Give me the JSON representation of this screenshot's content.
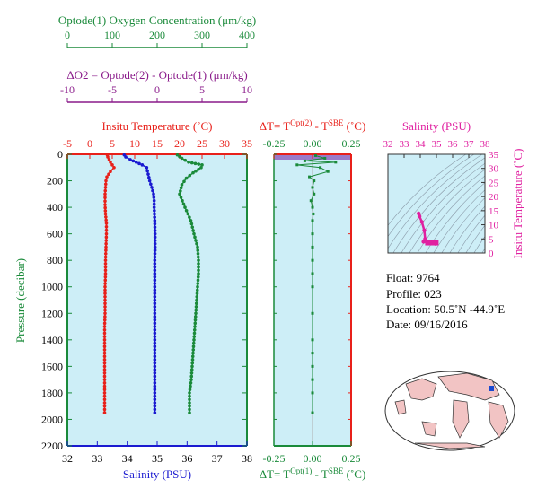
{
  "colors": {
    "oxygen": "#1a8a3a",
    "delta_o2": "#8a1a8a",
    "temperature": "#e8201a",
    "salinity": "#1a1ad0",
    "ts_pink": "#e020a0",
    "panel_bg": "#cdeef7",
    "land": "#f2c4c4"
  },
  "chart_data": [
    {
      "type": "line",
      "panel": "main-profile",
      "series": [
        {
          "name": "Insitu Temperature",
          "axis": "top",
          "x": [
            3.9,
            4.0,
            4.3,
            4.6,
            5.0,
            5.4,
            4.6,
            3.8,
            3.6,
            3.5,
            3.4,
            3.4,
            3.5,
            3.7,
            3.7,
            3.6,
            3.5,
            3.5,
            3.4,
            3.4,
            3.4,
            3.3,
            3.3,
            3.3,
            3.3,
            3.3,
            3.3,
            3.3
          ],
          "y": [
            5,
            20,
            40,
            60,
            80,
            100,
            130,
            170,
            200,
            250,
            300,
            380,
            450,
            520,
            600,
            700,
            800,
            900,
            1000,
            1100,
            1200,
            1300,
            1400,
            1500,
            1600,
            1700,
            1800,
            1950
          ]
        },
        {
          "name": "Salinity",
          "axis": "bottom",
          "x": [
            33.9,
            33.95,
            34.1,
            34.3,
            34.5,
            34.65,
            34.7,
            34.75,
            34.82,
            34.88,
            34.9,
            34.9,
            34.92,
            34.93,
            34.93,
            34.92,
            34.92,
            34.92,
            34.92,
            34.92,
            34.92,
            34.92,
            34.92,
            34.92,
            34.92,
            34.92,
            34.92
          ],
          "y": [
            5,
            20,
            40,
            60,
            80,
            100,
            150,
            200,
            250,
            300,
            350,
            400,
            500,
            600,
            700,
            800,
            900,
            1000,
            1100,
            1200,
            1300,
            1400,
            1500,
            1600,
            1700,
            1800,
            1950
          ]
        },
        {
          "name": "Optode(1) Oxygen Concentration",
          "axis": "top2",
          "x": [
            245,
            255,
            270,
            300,
            298,
            280,
            265,
            255,
            250,
            262,
            275,
            282,
            290,
            292,
            292,
            290,
            288,
            286,
            284,
            282,
            280,
            278,
            276,
            272,
            272,
            272
          ],
          "y": [
            5,
            30,
            60,
            80,
            100,
            140,
            180,
            230,
            300,
            400,
            500,
            600,
            700,
            800,
            900,
            1000,
            1100,
            1200,
            1300,
            1400,
            1500,
            1600,
            1700,
            1800,
            1900,
            1950
          ]
        }
      ],
      "axes": {
        "top": {
          "label": "Insitu Temperature (˚C)",
          "ticks": [
            "-5",
            "0",
            "5",
            "10",
            "15",
            "20",
            "25",
            "30",
            "35"
          ],
          "range": [
            -5,
            35
          ]
        },
        "top2": {
          "label": "Optode(1) Oxygen Concentration (μm/kg)",
          "ticks": [
            "0",
            "100",
            "200",
            "300",
            "400"
          ],
          "range": [
            0,
            400
          ]
        },
        "top3": {
          "label": "ΔO2 = Optode(2) - Optode(1)   (μm/kg)",
          "ticks": [
            "-10",
            "-5",
            "0",
            "5",
            "10"
          ],
          "range": [
            -10,
            10
          ]
        },
        "bottom": {
          "label": "Salinity (PSU)",
          "ticks": [
            "32",
            "33",
            "34",
            "35",
            "36",
            "37",
            "38"
          ],
          "range": [
            32,
            38
          ]
        },
        "left": {
          "label": "Pressure (decibar)",
          "ticks": [
            "0",
            "200",
            "400",
            "600",
            "800",
            "1000",
            "1200",
            "1400",
            "1600",
            "1800",
            "2000",
            "2200"
          ],
          "range": [
            0,
            2200
          ]
        }
      }
    },
    {
      "type": "scatter",
      "panel": "delta-t",
      "series": [
        {
          "name": "ΔT",
          "x": [
            0.02,
            0.08,
            -0.05,
            0.15,
            -0.1,
            0.05,
            0.1,
            -0.02,
            0.01,
            0.0,
            0.01,
            -0.01,
            0.0,
            0.005,
            0.0,
            0.0,
            0.0,
            0.0,
            0.0,
            0.0,
            0.0,
            0.0,
            0.0,
            0.0,
            0.0,
            0.0,
            0.0
          ],
          "y": [
            10,
            30,
            50,
            60,
            80,
            100,
            130,
            170,
            200,
            250,
            300,
            350,
            400,
            450,
            500,
            600,
            700,
            800,
            900,
            1000,
            1200,
            1400,
            1500,
            1600,
            1700,
            1800,
            1950
          ]
        }
      ],
      "axes": {
        "top": {
          "label_main": "ΔT= T",
          "label_sup1": "Opt(2)",
          "label_mid": " - T",
          "label_sup2": "SBE",
          "label_end": " (˚C)",
          "ticks": [
            "-0.25",
            "0.00",
            "0.25"
          ],
          "range": [
            -0.25,
            0.25
          ]
        },
        "bottom": {
          "label_main": "ΔT= T",
          "label_sup1": "Opt(1)",
          "label_mid": " - T",
          "label_sup2": "SBE",
          "label_end": " (˚C)",
          "ticks": [
            "-0.25",
            "0.00",
            "0.25"
          ],
          "range": [
            -0.25,
            0.25
          ]
        }
      }
    },
    {
      "type": "scatter",
      "panel": "ts-diagram",
      "series": [
        {
          "name": "T-S",
          "x": [
            33.9,
            33.95,
            34.1,
            34.25,
            34.3,
            34.2,
            34.5,
            34.7,
            34.9,
            34.95,
            34.93
          ],
          "y": [
            14.0,
            13.0,
            11.0,
            8.0,
            5.0,
            4.0,
            3.8,
            3.6,
            3.5,
            3.4,
            3.3
          ]
        }
      ],
      "axes": {
        "top": {
          "label": "Salinity (PSU)",
          "ticks": [
            "32",
            "33",
            "34",
            "35",
            "36",
            "37",
            "38"
          ],
          "range": [
            32,
            38
          ]
        },
        "right": {
          "label": "Insitu Temperature (˚C)",
          "ticks": [
            "0",
            "5",
            "10",
            "15",
            "20",
            "25",
            "30",
            "35"
          ],
          "range": [
            0,
            35
          ]
        }
      }
    }
  ],
  "info": {
    "float": "Float:  9764",
    "profile": "Profile:  023",
    "location": "Location:  50.5˚N  -44.9˚E",
    "date": "Date:  09/16/2016"
  }
}
